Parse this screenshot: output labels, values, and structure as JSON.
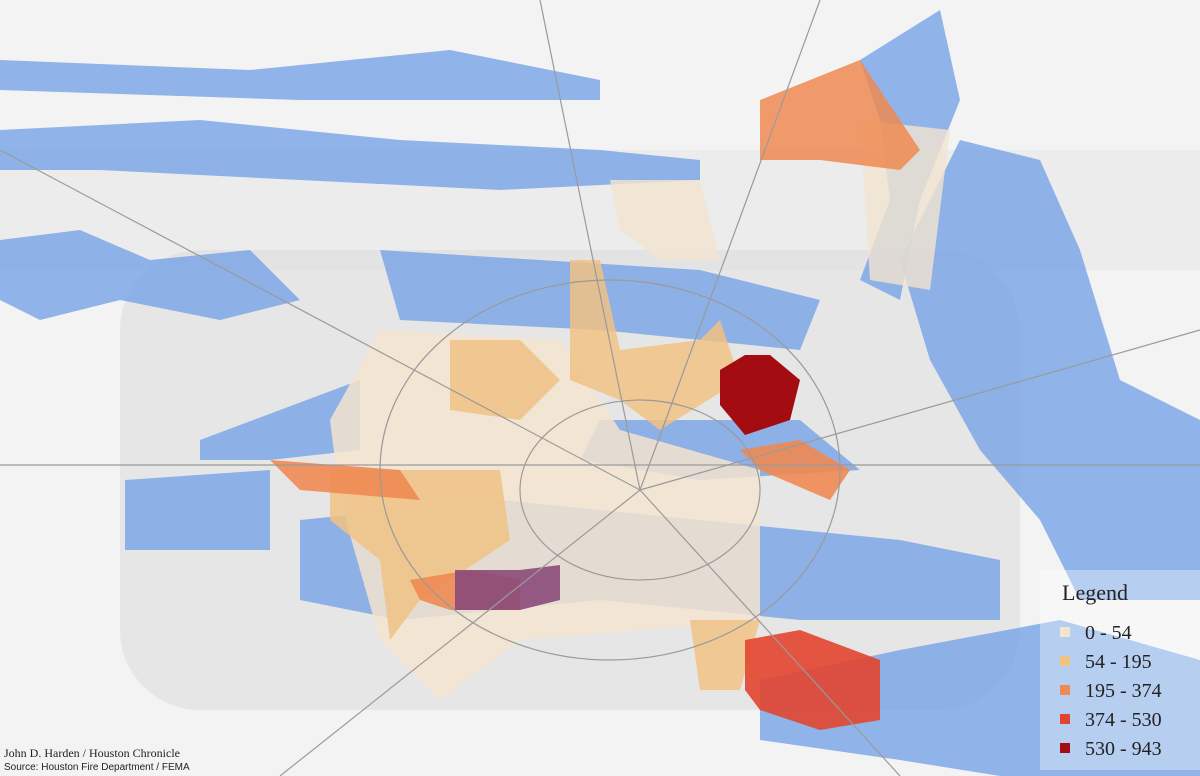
{
  "legend": {
    "title": "Legend",
    "items": [
      {
        "label": "0 - 54",
        "color": "#f3e4cf"
      },
      {
        "label": "54 - 195",
        "color": "#f0c284"
      },
      {
        "label": "195 - 374",
        "color": "#ee8a52"
      },
      {
        "label": "374 - 530",
        "color": "#e2452f"
      },
      {
        "label": "530 - 943",
        "color": "#a30d12"
      }
    ]
  },
  "credits": {
    "author": "John D. Harden / Houston Chronicle",
    "source": "Source: Houston Fire Department / FEMA"
  }
}
